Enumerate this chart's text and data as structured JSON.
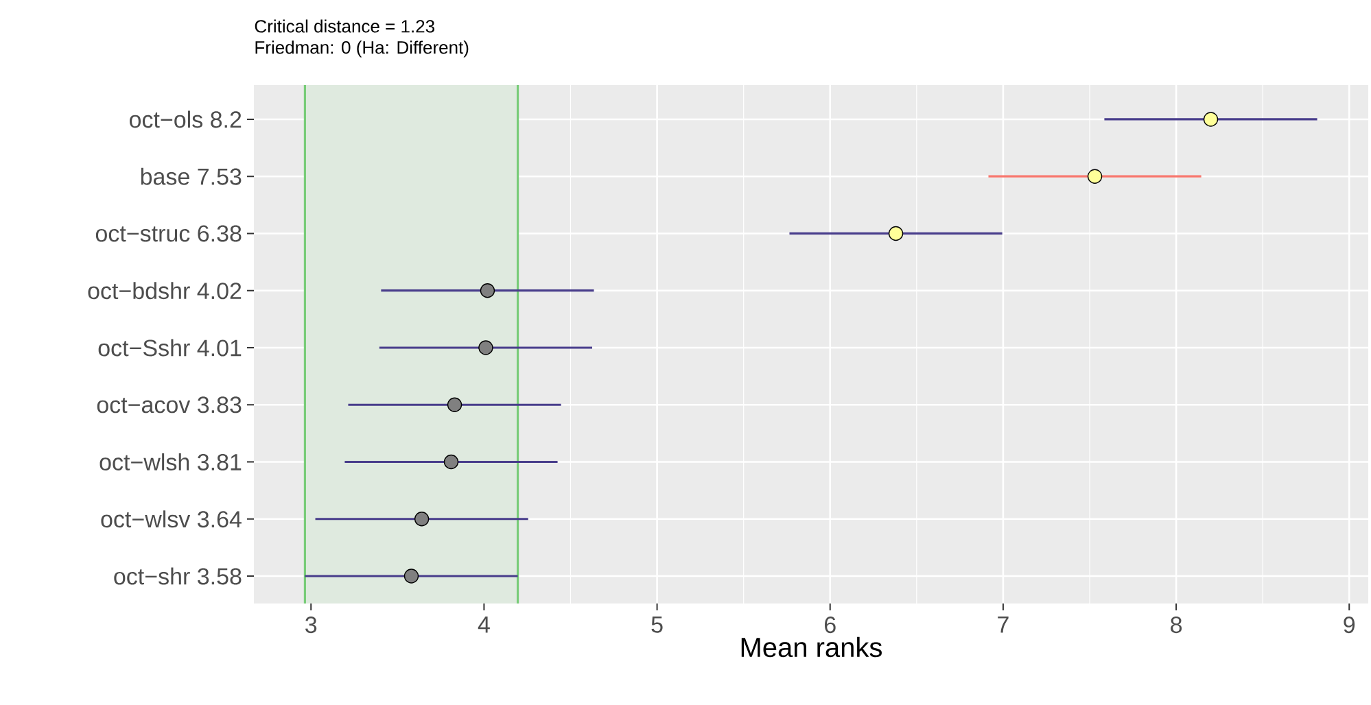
{
  "chart_data": {
    "type": "scatter",
    "orientation": "horizontal",
    "title": "Critical distance = 1.23",
    "subtitle": "Friedman: 0 (Ha: Different)",
    "xlabel": "Mean ranks",
    "categories": [
      "oct−ols 8.2",
      "base 7.53",
      "oct−struc 6.38",
      "oct−bdshr 4.02",
      "oct−Sshr 4.01",
      "oct−acov 3.83",
      "oct−wlsh 3.81",
      "oct−wlsv 3.64",
      "oct−shr 3.58"
    ],
    "series": [
      {
        "color": "#483d8b",
        "values": [
          8.2,
          null,
          6.38,
          4.02,
          4.01,
          3.83,
          3.81,
          3.64,
          3.58
        ],
        "errors": [
          0.615,
          null,
          0.615,
          0.615,
          0.615,
          0.615,
          0.615,
          0.615,
          0.615
        ],
        "colors": [
          "#ffff99",
          null,
          "#ffff99",
          "#808080",
          "#808080",
          "#808080",
          "#808080",
          "#808080",
          "#808080"
        ]
      },
      {
        "color": "#f8766d",
        "values": [
          null,
          7.53,
          null,
          null,
          null,
          null,
          null,
          null,
          null
        ],
        "errors": [
          null,
          0.615,
          null,
          null,
          null,
          null,
          null,
          null,
          null
        ],
        "colors": [
          null,
          "#ffff99",
          null,
          null,
          null,
          null,
          null,
          null,
          null
        ]
      }
    ],
    "bands": [
      {
        "axis": "x",
        "from": 2.965,
        "to": 4.195,
        "color": "#dfeadf"
      }
    ],
    "ref_lines": [
      {
        "axis": "x",
        "value": 2.965,
        "color": "#78cc78"
      },
      {
        "axis": "x",
        "value": 4.195,
        "color": "#78cc78"
      }
    ],
    "xlim": [
      2.67,
      9.11
    ],
    "xticks": [
      3,
      4,
      5,
      6,
      7,
      8,
      9
    ],
    "grid": true,
    "marker": "circle"
  }
}
